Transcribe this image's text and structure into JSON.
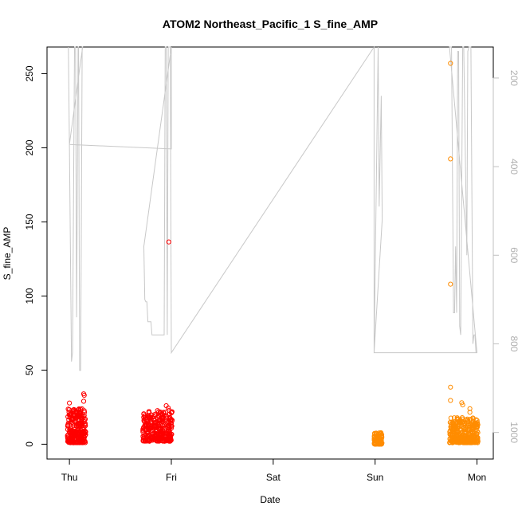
{
  "chart_data": {
    "type": "scatter",
    "title": "ATOM2 Northeast_Pacific_1 S_fine_AMP",
    "xlabel": "Date",
    "ylabel": "S_fine_AMP",
    "x_ticks": [
      {
        "label": "Thu",
        "value": 0
      },
      {
        "label": "Fri",
        "value": 1
      },
      {
        "label": "Sat",
        "value": 2
      },
      {
        "label": "Sun",
        "value": 3
      },
      {
        "label": "Mon",
        "value": 4
      }
    ],
    "xlim": [
      -0.22,
      4.16
    ],
    "ylim": [
      -10,
      268
    ],
    "y_ticks": [
      0,
      50,
      100,
      150,
      200,
      250
    ],
    "right_axis": {
      "ticks": [
        200,
        400,
        600,
        800,
        1000
      ],
      "ylim": [
        1060,
        130
      ],
      "reversed": true,
      "color": "#c0c0c0"
    },
    "colors": {
      "series_red": "#ff0000",
      "series_orange": "#ff8c00",
      "depth_line": "#c8c8c8"
    },
    "series": [
      {
        "color": "#ff0000",
        "clusters": [
          {
            "x_start": -0.02,
            "x_end": 0.16,
            "low": 1,
            "high": 24,
            "count": 260
          },
          {
            "x_start": 0.72,
            "x_end": 1.01,
            "low": 2,
            "high": 23,
            "count": 300
          }
        ],
        "points": [
          {
            "x": 0.0,
            "y": 27.8
          },
          {
            "x": 0.14,
            "y": 34
          },
          {
            "x": 0.145,
            "y": 33
          },
          {
            "x": 0.14,
            "y": 29
          },
          {
            "x": 0.95,
            "y": 26
          },
          {
            "x": 0.97,
            "y": 24.5
          },
          {
            "x": 0.975,
            "y": 136.5
          }
        ]
      },
      {
        "color": "#ff8c00",
        "clusters": [
          {
            "x_start": 2.99,
            "x_end": 3.07,
            "low": 0,
            "high": 8,
            "count": 90
          },
          {
            "x_start": 3.73,
            "x_end": 4.01,
            "low": 1,
            "high": 18,
            "count": 320
          }
        ],
        "points": [
          {
            "x": 3.74,
            "y": 257
          },
          {
            "x": 3.74,
            "y": 192.5
          },
          {
            "x": 3.74,
            "y": 108
          },
          {
            "x": 3.74,
            "y": 38.5
          },
          {
            "x": 3.74,
            "y": 29.5
          },
          {
            "x": 3.85,
            "y": 28
          },
          {
            "x": 3.86,
            "y": 26.5
          },
          {
            "x": 3.93,
            "y": 24
          },
          {
            "x": 3.93,
            "y": 21.5
          }
        ]
      }
    ],
    "depth_line": [
      [
        -0.01,
        100
      ],
      [
        0.0,
        350
      ],
      [
        0.02,
        840
      ],
      [
        0.03,
        820
      ],
      [
        0.05,
        100
      ],
      [
        0.06,
        100
      ],
      [
        0.07,
        740
      ],
      [
        0.085,
        100
      ],
      [
        0.09,
        100
      ],
      [
        0.1,
        860
      ],
      [
        0.11,
        860
      ],
      [
        0.125,
        100
      ],
      [
        0.13,
        100
      ],
      [
        0.0,
        350
      ],
      [
        1.0,
        360
      ],
      [
        1.0,
        100
      ],
      [
        0.73,
        580
      ],
      [
        0.74,
        700
      ],
      [
        0.75,
        705
      ],
      [
        0.76,
        705
      ],
      [
        0.77,
        750
      ],
      [
        0.8,
        750
      ],
      [
        0.81,
        780
      ],
      [
        0.85,
        780
      ],
      [
        0.86,
        780
      ],
      [
        0.93,
        780
      ],
      [
        0.94,
        100
      ],
      [
        0.95,
        100
      ],
      [
        0.96,
        780
      ],
      [
        0.97,
        100
      ],
      [
        0.99,
        100
      ],
      [
        1.0,
        820
      ],
      [
        2.99,
        100
      ],
      [
        2.99,
        820
      ],
      [
        3.03,
        100
      ],
      [
        3.04,
        490
      ],
      [
        3.06,
        240
      ],
      [
        3.07,
        520
      ],
      [
        2.99,
        820
      ],
      [
        4.0,
        820
      ],
      [
        3.73,
        100
      ],
      [
        3.74,
        100
      ],
      [
        3.75,
        100
      ],
      [
        3.77,
        730
      ],
      [
        3.78,
        730
      ],
      [
        3.79,
        580
      ],
      [
        3.8,
        730
      ],
      [
        3.81,
        140
      ],
      [
        3.82,
        140
      ],
      [
        3.83,
        760
      ],
      [
        3.84,
        780
      ],
      [
        3.86,
        100
      ],
      [
        3.87,
        100
      ],
      [
        3.9,
        600
      ],
      [
        3.91,
        140
      ],
      [
        3.92,
        100
      ],
      [
        3.93,
        100
      ],
      [
        3.94,
        100
      ],
      [
        3.96,
        800
      ],
      [
        3.97,
        780
      ],
      [
        3.98,
        780
      ],
      [
        3.99,
        820
      ]
    ]
  }
}
